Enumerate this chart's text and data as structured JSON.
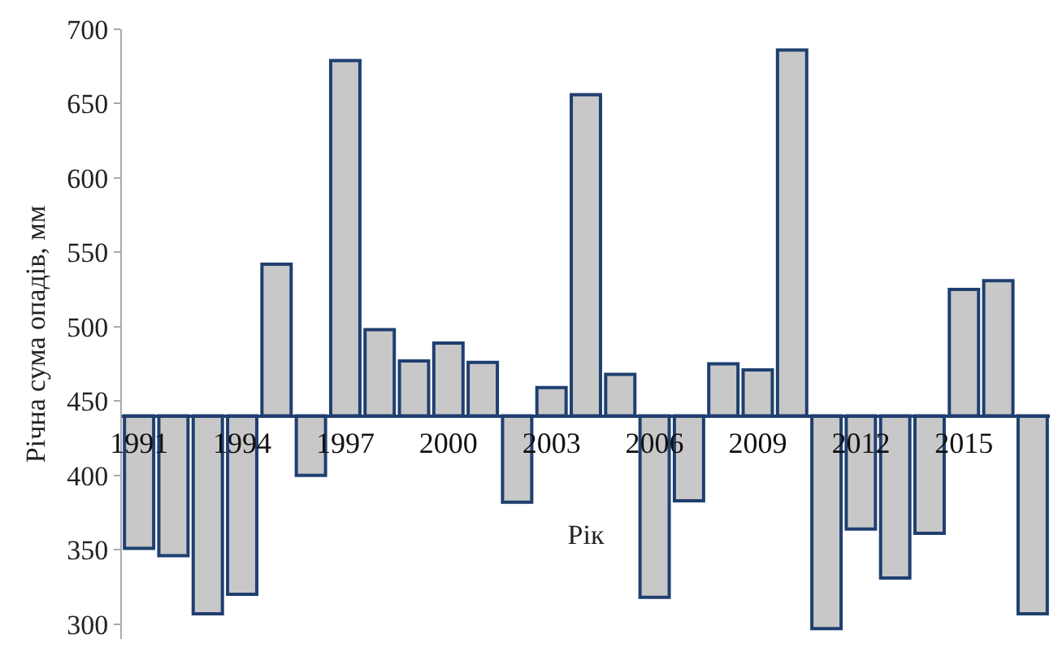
{
  "chart_data": {
    "type": "bar",
    "xlabel": "Рік",
    "ylabel": "Річна сума опадів, мм",
    "categories": [
      "1991",
      null,
      null,
      "1994",
      null,
      null,
      "1997",
      null,
      null,
      "2000",
      null,
      null,
      "2003",
      null,
      null,
      "2006",
      null,
      null,
      "2009",
      null,
      null,
      "2012",
      null,
      null,
      "2015",
      null,
      null
    ],
    "base": [
      440,
      440,
      440,
      440,
      440,
      440,
      440,
      440,
      440,
      440,
      440,
      440,
      440,
      440,
      440,
      440,
      440,
      440,
      440,
      440,
      440,
      440,
      440,
      440,
      440,
      440,
      440
    ],
    "values": [
      -89,
      -94,
      -133,
      -120,
      102,
      -40,
      239,
      58,
      37,
      49,
      36,
      -58,
      19,
      216,
      28,
      -122,
      -57,
      35,
      31,
      246,
      -143,
      -76,
      -109,
      -79,
      85,
      91,
      -133
    ],
    "color": "#c8c8c8",
    "ylim": [
      290,
      700
    ],
    "yticks": [
      300,
      350,
      400,
      450,
      500,
      550,
      600,
      650,
      700
    ],
    "grid": false,
    "legend": false
  }
}
